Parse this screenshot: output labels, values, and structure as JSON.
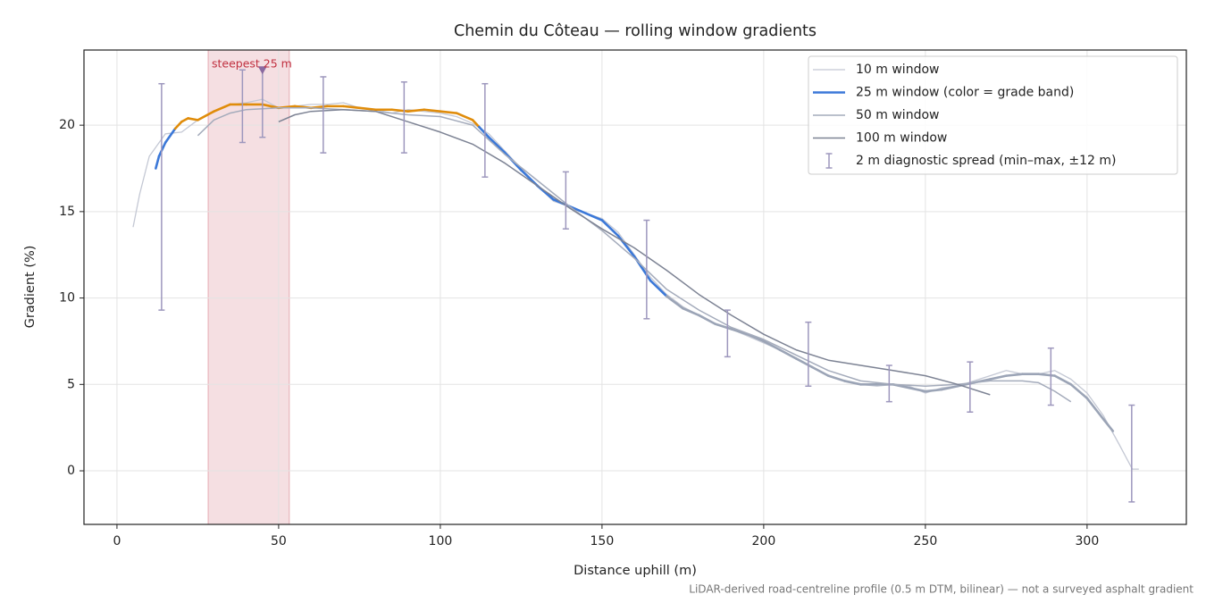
{
  "chart_data": {
    "type": "line",
    "title": "Chemin du Côteau — rolling window gradients",
    "xlabel": "Distance uphill (m)",
    "ylabel": "Gradient (%)",
    "footnote": "LiDAR-derived road-centreline profile (0.5 m DTM, bilinear) — not a surveyed asphalt gradient",
    "xlim": [
      -10.2,
      330.7
    ],
    "ylim": [
      -3.1,
      24.35
    ],
    "xticks": [
      0,
      50,
      100,
      150,
      200,
      250,
      300
    ],
    "yticks": [
      0,
      5,
      10,
      15,
      20
    ],
    "grid": true,
    "legend": "upper right",
    "series": [
      {
        "name": "10 m window",
        "color": "#c4c8d4",
        "width": 1.3,
        "x": [
          5,
          7,
          10,
          15,
          20,
          25,
          30,
          35,
          40,
          45,
          50,
          55,
          60,
          65,
          70,
          75,
          80,
          85,
          90,
          95,
          100,
          105,
          110,
          115,
          120,
          125,
          130,
          135,
          140,
          145,
          150,
          155,
          160,
          165,
          170,
          175,
          180,
          185,
          190,
          195,
          200,
          205,
          210,
          215,
          220,
          225,
          230,
          235,
          240,
          245,
          250,
          255,
          260,
          265,
          270,
          275,
          280,
          285,
          290,
          295,
          300,
          305,
          310,
          314,
          316
        ],
        "values": [
          14.1,
          16,
          18.2,
          19.5,
          19.6,
          20.3,
          20.8,
          21.2,
          21.3,
          21.5,
          21,
          21.1,
          21.2,
          21.2,
          21.3,
          21,
          20.9,
          20.7,
          20.9,
          20.8,
          20.7,
          20.5,
          20.1,
          19.5,
          18.5,
          17.5,
          16.5,
          15.6,
          15.3,
          14.9,
          14.6,
          13.8,
          12.5,
          11.2,
          10.2,
          9.5,
          9,
          8.5,
          8.2,
          7.8,
          7.4,
          7,
          6.5,
          6,
          5.5,
          5.2,
          5,
          4.9,
          5,
          4.9,
          4.5,
          4.8,
          4.9,
          5.2,
          5.5,
          5.8,
          5.6,
          5.6,
          5.8,
          5.3,
          4.5,
          3.2,
          1.5,
          0.1,
          0.1
        ]
      },
      {
        "name": "25 m window (color = grade band)",
        "color": "#3b78d8",
        "width": 2.6,
        "grade_bands": {
          "thresholds": [
            10,
            20
          ],
          "colors": [
            "#9ba4b6",
            "#3b78d8",
            "#e08c0a"
          ]
        },
        "x": [
          12,
          13,
          15,
          18,
          20,
          22,
          25,
          30,
          35,
          40,
          45,
          50,
          55,
          60,
          65,
          70,
          75,
          80,
          85,
          90,
          95,
          100,
          105,
          110,
          112,
          115,
          120,
          125,
          130,
          135,
          140,
          145,
          150,
          155,
          160,
          165,
          170,
          175,
          180,
          185,
          190,
          195,
          200,
          205,
          210,
          215,
          220,
          225,
          230,
          235,
          240,
          245,
          250,
          255,
          260,
          265,
          270,
          275,
          280,
          285,
          290,
          295,
          300,
          305,
          308
        ],
        "values": [
          17.5,
          18.2,
          19,
          19.8,
          20.2,
          20.4,
          20.3,
          20.8,
          21.2,
          21.2,
          21.2,
          21,
          21.1,
          21,
          21.1,
          21.1,
          21,
          20.9,
          20.9,
          20.8,
          20.9,
          20.8,
          20.7,
          20.3,
          19.9,
          19.3,
          18.4,
          17.4,
          16.5,
          15.7,
          15.3,
          14.9,
          14.5,
          13.6,
          12.4,
          11,
          10.1,
          9.4,
          9,
          8.5,
          8.2,
          7.9,
          7.5,
          7,
          6.5,
          6,
          5.5,
          5.2,
          5,
          5,
          5,
          4.8,
          4.6,
          4.7,
          4.9,
          5.1,
          5.3,
          5.5,
          5.6,
          5.6,
          5.5,
          5,
          4.2,
          3,
          2.3
        ]
      },
      {
        "name": "50 m window",
        "color": "#a4abbb",
        "width": 1.5,
        "x": [
          25,
          30,
          35,
          40,
          50,
          60,
          70,
          80,
          90,
          100,
          110,
          120,
          130,
          140,
          150,
          160,
          170,
          180,
          190,
          200,
          210,
          220,
          230,
          240,
          250,
          260,
          270,
          280,
          285,
          290,
          295
        ],
        "values": [
          19.4,
          20.3,
          20.7,
          20.9,
          21,
          21,
          20.9,
          20.8,
          20.6,
          20.5,
          20,
          18.3,
          16.8,
          15.3,
          13.9,
          12.3,
          10.5,
          9.3,
          8.3,
          7.6,
          6.7,
          5.8,
          5.2,
          5,
          4.9,
          5,
          5.2,
          5.2,
          5.1,
          4.6,
          4
        ]
      },
      {
        "name": "100 m window",
        "color": "#7d8394",
        "width": 1.5,
        "x": [
          50,
          55,
          60,
          70,
          80,
          90,
          100,
          110,
          120,
          130,
          140,
          150,
          160,
          170,
          180,
          190,
          200,
          210,
          220,
          230,
          240,
          250,
          260,
          270
        ],
        "values": [
          20.2,
          20.6,
          20.8,
          20.9,
          20.8,
          20.2,
          19.6,
          18.9,
          17.8,
          16.5,
          15.2,
          14,
          12.9,
          11.6,
          10.2,
          9,
          7.9,
          7,
          6.4,
          6.1,
          5.8,
          5.5,
          5,
          4.4
        ]
      }
    ],
    "errorbars": {
      "name": "2 m diagnostic spread (min–max, ±12 m)",
      "color": "#9d97bd",
      "x": [
        13.8,
        38.8,
        45,
        63.8,
        88.8,
        113.8,
        138.8,
        163.8,
        188.8,
        213.8,
        238.8,
        263.8,
        288.8,
        313.8
      ],
      "low": [
        9.3,
        19.0,
        19.3,
        18.4,
        18.4,
        17.0,
        14.0,
        8.8,
        6.6,
        4.9,
        4.0,
        3.4,
        3.8,
        -1.8
      ],
      "high": [
        22.4,
        23.2,
        23.3,
        22.8,
        22.5,
        22.4,
        17.3,
        14.5,
        9.3,
        8.6,
        6.1,
        6.3,
        7.1,
        3.8
      ]
    },
    "highlight": {
      "label": "steepest 25 m",
      "xrange": [
        28.2,
        53.3
      ],
      "color": "#d9808c",
      "label_color": "#c03040",
      "marker": {
        "x": 45,
        "y": 23.2,
        "color": "#8a6aa0"
      }
    }
  }
}
